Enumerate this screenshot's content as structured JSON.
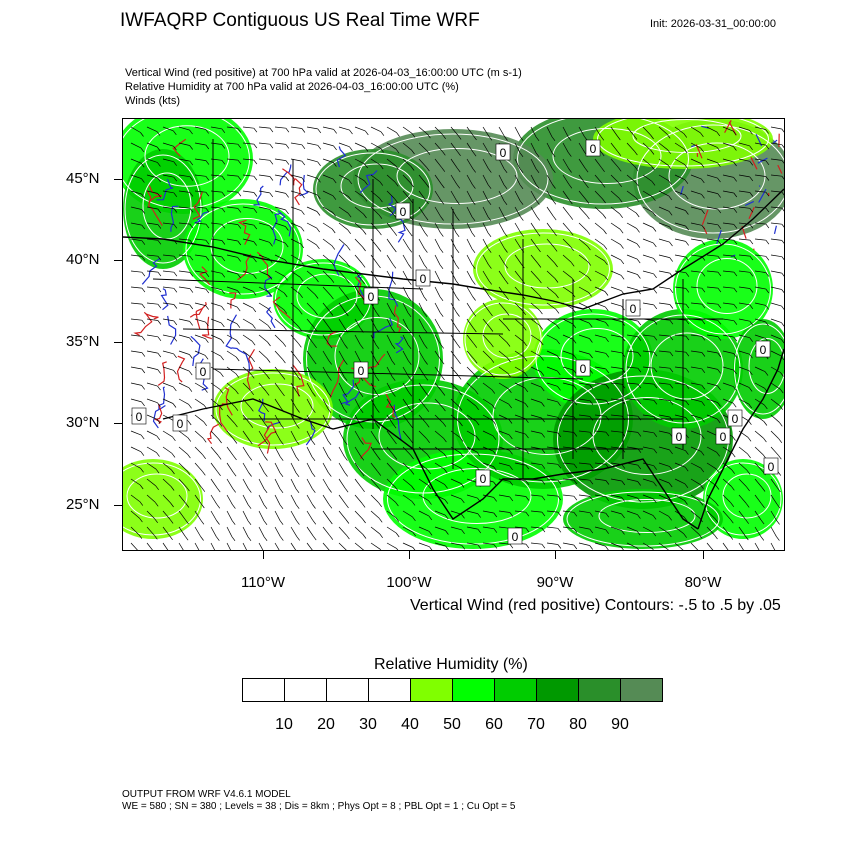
{
  "header": {
    "title": "IWFAQRP Contiguous US Real Time WRF",
    "init": "Init: 2026-03-31_00:00:00",
    "subtitles": [
      "Vertical Wind (red positive) at 700 hPa valid at 2026-04-03_16:00:00 UTC   (m s-1)",
      "Relative Humidity at 700 hPa valid at 2026-04-03_16:00:00 UTC   (%)",
      "Winds   (kts)"
    ]
  },
  "map": {
    "lat_labels": [
      "45°N",
      "40°N",
      "35°N",
      "30°N",
      "25°N"
    ],
    "lon_labels": [
      "110°W",
      "100°W",
      "90°W",
      "80°W"
    ],
    "contour_note": "Vertical Wind (red positive) Contours: -.5 to .5 by .05",
    "contour_zero_label": "0",
    "colors": {
      "positive_vertical_wind": "#d22020",
      "negative_vertical_wind": "#2030d0",
      "wind_barbs": "#000000",
      "rh_contours": "#ffffff"
    }
  },
  "legend": {
    "title": "Relative Humidity  (%)",
    "colors": [
      "#ffffff",
      "#ffffff",
      "#ffffff",
      "#ffffff",
      "#80ff00",
      "#00ff00",
      "#00cc00",
      "#009900",
      "#2a8f2a",
      "#558b55"
    ],
    "labels": [
      "10",
      "20",
      "30",
      "40",
      "50",
      "60",
      "70",
      "80",
      "90"
    ]
  },
  "footer": {
    "line1": "OUTPUT FROM WRF V4.6.1 MODEL",
    "line2": "WE = 580 ; SN = 380 ; Levels = 38 ; Dis = 8km ; Phys Opt = 8 ; PBL Opt = 1 ; Cu Opt = 5"
  }
}
